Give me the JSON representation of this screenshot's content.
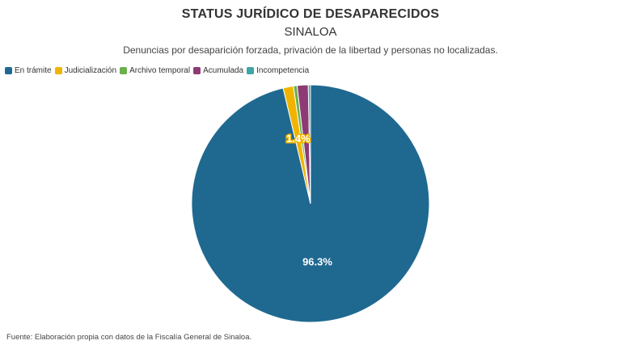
{
  "chart_data": {
    "type": "pie",
    "title": "STATUS JURÍDICO DE DESAPARECIDOS",
    "subtitle": "SINALOA",
    "description": "Denuncias por desaparición forzada, privación de la libertad y personas no localizadas.",
    "legend_position": "top-left",
    "slices": [
      {
        "name": "En trámite",
        "value": 96.3,
        "color": "#1f6991",
        "label": "96.3%"
      },
      {
        "name": "Judicialización",
        "value": 1.4,
        "color": "#f0b400",
        "label": "1.4%"
      },
      {
        "name": "Archivo temporal",
        "value": 0.5,
        "color": "#6ab04c",
        "label": ""
      },
      {
        "name": "Acumulada",
        "value": 1.5,
        "color": "#8e3a75",
        "label": ""
      },
      {
        "name": "Incompetencia",
        "value": 0.3,
        "color": "#3fa5a5",
        "label": ""
      }
    ]
  },
  "source": "Fuente: Elaboración propia con datos de la Fiscalía General de Sinaloa."
}
